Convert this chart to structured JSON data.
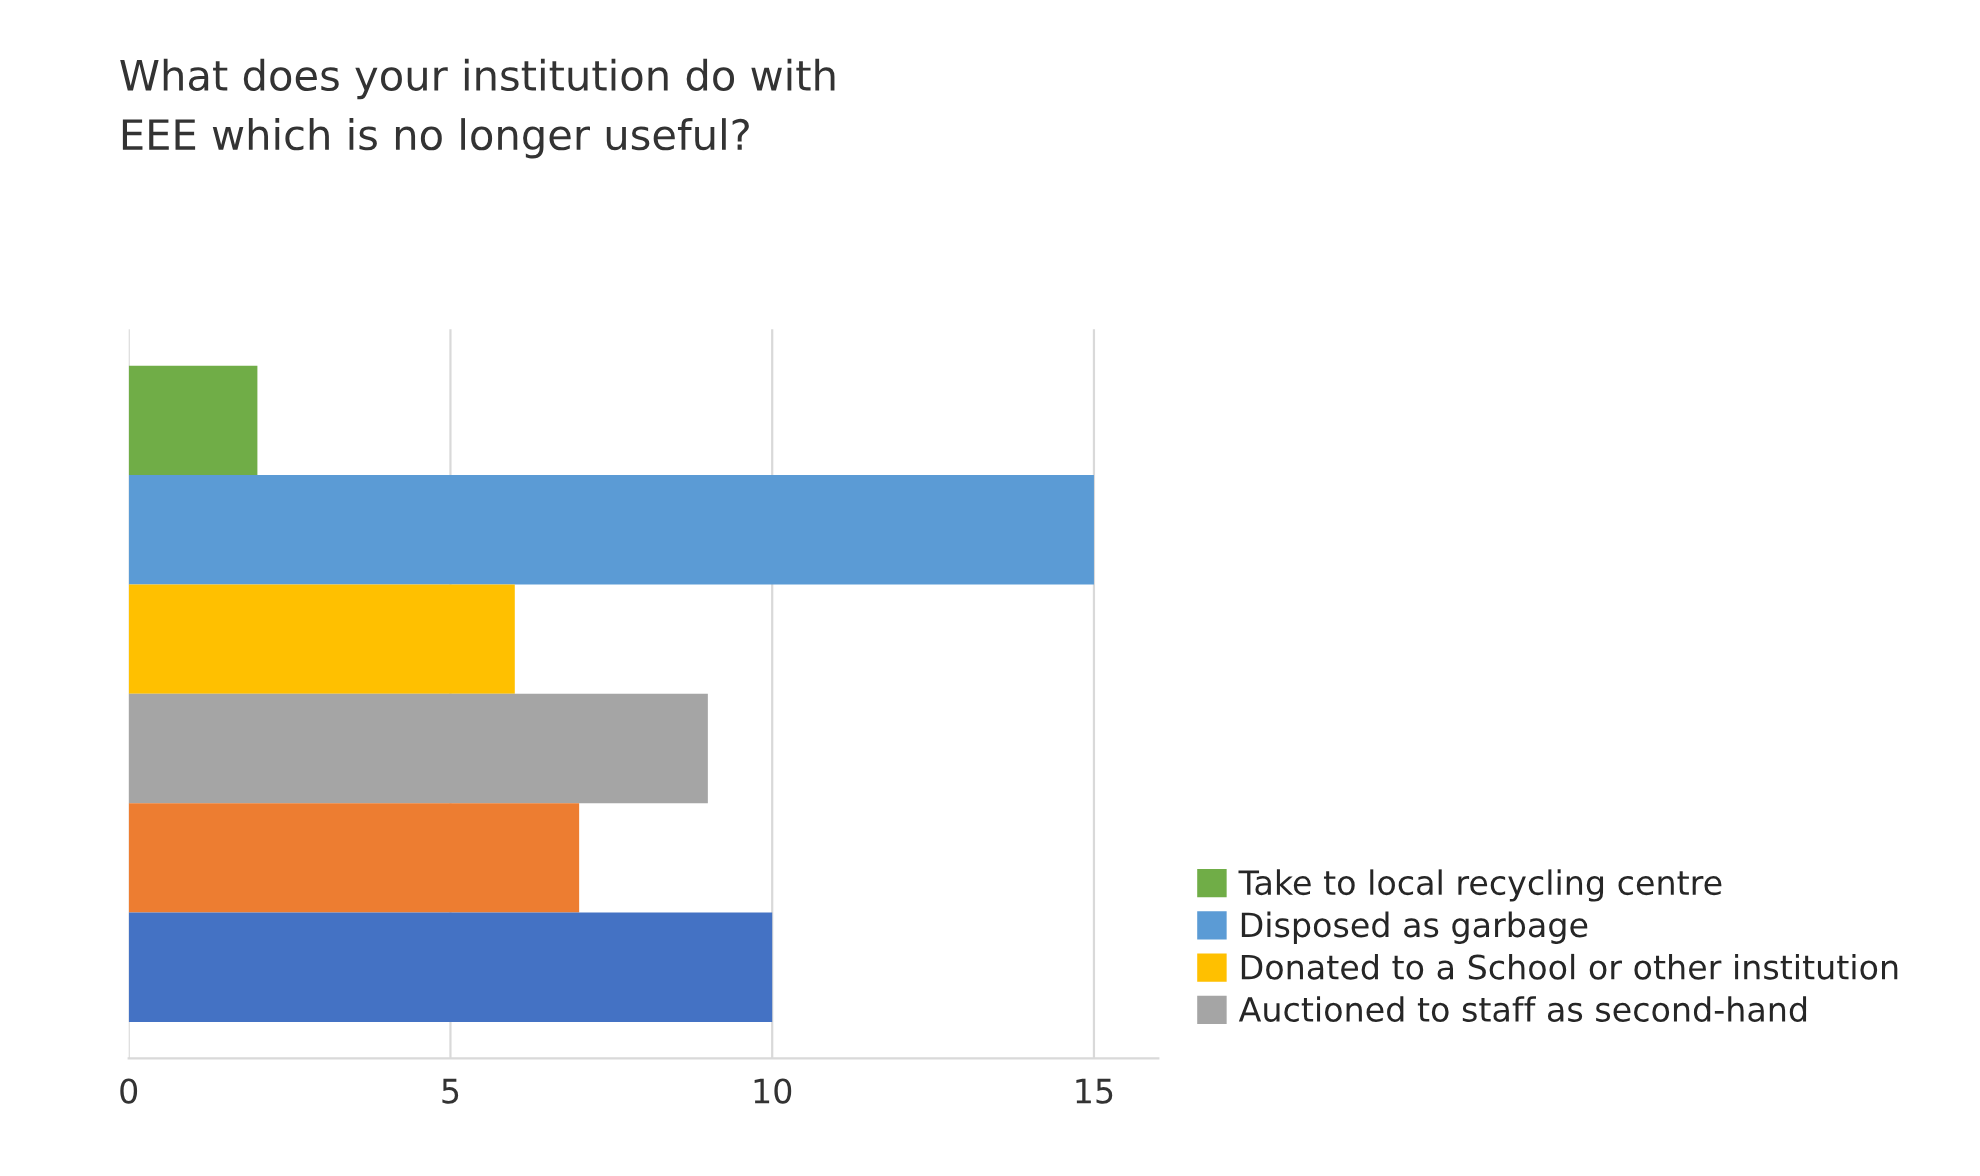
{
  "chart_data": {
    "type": "bar",
    "orientation": "horizontal",
    "title": "What does your institution do with\nEEE which is no longer useful?",
    "categories": [
      null
    ],
    "series": [
      {
        "name": "Take to local recycling centre",
        "color": "#70ad47",
        "values": [
          2
        ]
      },
      {
        "name": "Disposed as garbage",
        "color": "#5b9bd5",
        "values": [
          15
        ]
      },
      {
        "name": "Donated to a School or other institution",
        "color": "#ffc000",
        "values": [
          6
        ]
      },
      {
        "name": "Auctioned to staff as second-hand",
        "color": "#a5a5a5",
        "values": [
          9
        ]
      },
      {
        "color": "#ed7d31",
        "values": [
          7
        ]
      },
      {
        "color": "#4472c4",
        "values": [
          10
        ]
      }
    ],
    "xlim": [
      0,
      16
    ],
    "xticks": [
      0,
      5,
      10,
      15
    ],
    "grid": "x",
    "legend": "bottom right"
  }
}
